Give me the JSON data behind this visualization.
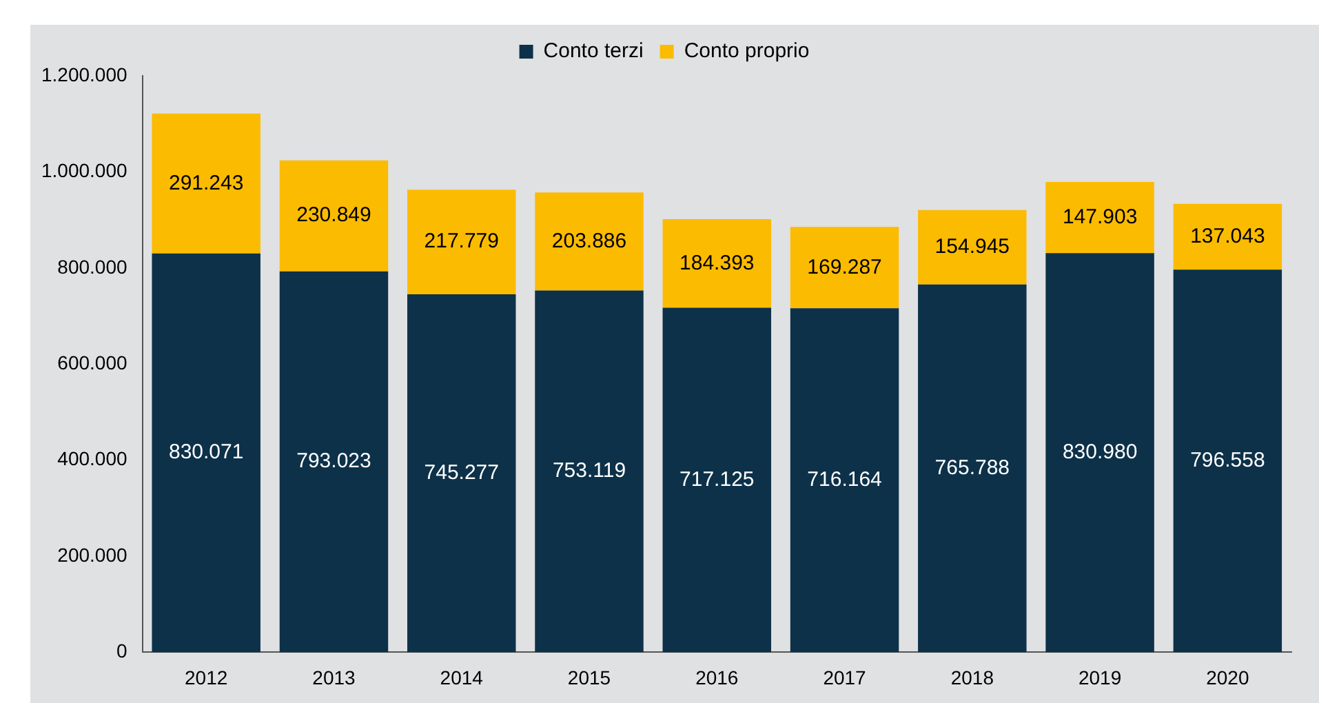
{
  "chart_data": {
    "type": "bar",
    "stacked": true,
    "categories": [
      "2012",
      "2013",
      "2014",
      "2015",
      "2016",
      "2017",
      "2018",
      "2019",
      "2020"
    ],
    "series": [
      {
        "name": "Conto terzi",
        "color": "#0d3149",
        "values": [
          830071,
          793023,
          745277,
          753119,
          717125,
          716164,
          765788,
          830980,
          796558
        ],
        "value_labels": [
          "830.071",
          "793.023",
          "745.277",
          "753.119",
          "717.125",
          "716.164",
          "765.788",
          "830.980",
          "796.558"
        ]
      },
      {
        "name": "Conto proprio",
        "color": "#fbbb00",
        "values": [
          291243,
          230849,
          217779,
          203886,
          184393,
          169287,
          154945,
          147903,
          137043
        ],
        "value_labels": [
          "291.243",
          "230.849",
          "217.779",
          "203.886",
          "184.393",
          "169.287",
          "154.945",
          "147.903",
          "137.043"
        ]
      }
    ],
    "ylim": [
      0,
      1200000
    ],
    "yticks": [
      {
        "value": 0,
        "label": "0"
      },
      {
        "value": 200000,
        "label": "200.000"
      },
      {
        "value": 400000,
        "label": "400.000"
      },
      {
        "value": 600000,
        "label": "600.000"
      },
      {
        "value": 800000,
        "label": "800.000"
      },
      {
        "value": 1000000,
        "label": "1.000.000"
      },
      {
        "value": 1200000,
        "label": "1.200.000"
      }
    ],
    "grid": false,
    "legend": "top"
  }
}
